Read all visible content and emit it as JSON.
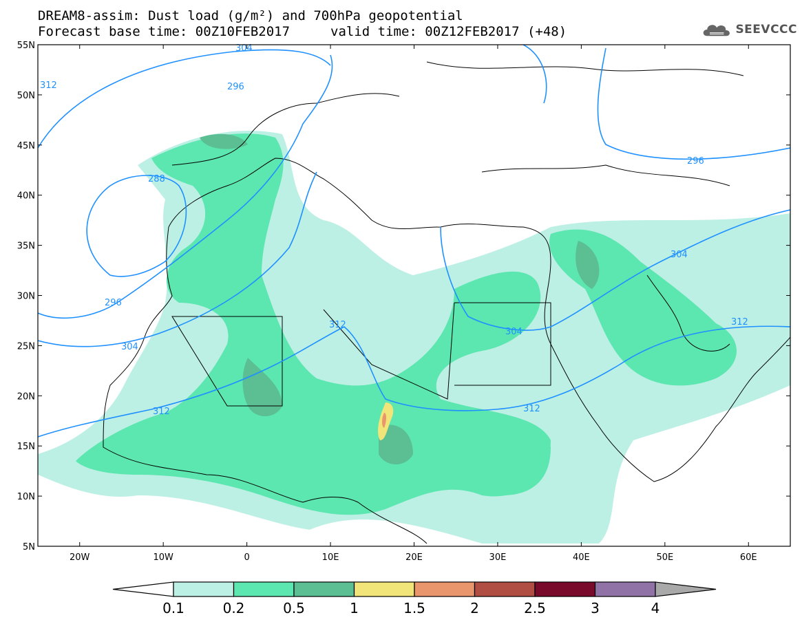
{
  "title": {
    "line1": "DREAM8-assim: Dust load (g/m²) and 700hPa geopotential",
    "line2_left": "Forecast base time: 00Z10FEB2017",
    "line2_right": "valid time: 00Z12FEB2017 (+48)"
  },
  "logo": {
    "text": "SEEVCCC",
    "icon": "cloud-icon"
  },
  "map": {
    "lat_labels": [
      "55N",
      "50N",
      "45N",
      "40N",
      "35N",
      "30N",
      "25N",
      "20N",
      "15N",
      "10N",
      "5N"
    ],
    "lon_labels": [
      "20W",
      "10W",
      "0",
      "10E",
      "20E",
      "30E",
      "40E",
      "50E",
      "60E"
    ],
    "contour_labels": {
      "c304_north": "304",
      "c312_nw": "312",
      "c296_nw": "296",
      "c288": "288",
      "c296_w": "296",
      "c304_w": "304",
      "c312_c": "312",
      "c312_w": "312",
      "c312_s": "312",
      "c304_ne": "304",
      "c296_e": "296",
      "c304_c": "304",
      "c312_e": "312"
    },
    "colors": {
      "contour": "#1e90ff",
      "land_border": "#000000"
    }
  },
  "colorbar": {
    "labels": [
      "0.1",
      "0.2",
      "0.5",
      "1",
      "1.5",
      "2",
      "2.5",
      "3",
      "4"
    ],
    "colors": [
      "#ffffff",
      "#bdf0e4",
      "#5ce6b0",
      "#5bbf93",
      "#f1e579",
      "#e9966c",
      "#b04e44",
      "#7a0a2c",
      "#9072a6",
      "#a9a9a9"
    ]
  }
}
